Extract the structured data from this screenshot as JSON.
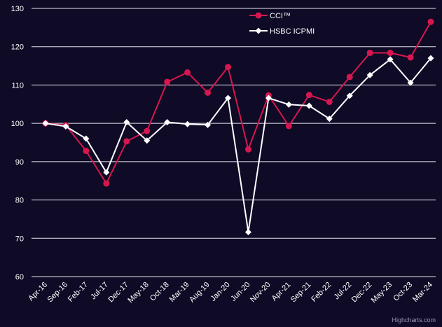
{
  "colors": {
    "background": "#0f0a26",
    "grid": "#e6e4ef",
    "text": "#ffffff",
    "cci": "#d6174f",
    "hsbc": "#ffffff"
  },
  "credit": "Highcharts.com",
  "chart_data": {
    "type": "line",
    "categories": [
      "Apr-16",
      "Sep-16",
      "Feb-17",
      "Jul-17",
      "Dec-17",
      "May-18",
      "Oct-18",
      "Mar-19",
      "Aug-19",
      "Jan-20",
      "Jun-20",
      "Nov-20",
      "Apr-21",
      "Sep-21",
      "Feb-22",
      "Jul-22",
      "Dec-22",
      "May-23",
      "Oct-23",
      "Mar-24"
    ],
    "ylim": [
      60,
      130
    ],
    "yticks": [
      60,
      70,
      80,
      90,
      100,
      110,
      120,
      130
    ],
    "grid": true,
    "legend_position": "top-right",
    "series": [
      {
        "name": "CCI™",
        "color": "#d6174f",
        "marker": "circle",
        "values": [
          100.0,
          99.5,
          92.8,
          84.3,
          95.3,
          98.0,
          110.8,
          113.3,
          108.0,
          114.7,
          93.2,
          107.3,
          99.3,
          107.4,
          105.6,
          112.1,
          118.4,
          118.4,
          117.2,
          126.5
        ]
      },
      {
        "name": "HSBC ICPMI",
        "color": "#ffffff",
        "marker": "diamond",
        "values": [
          100.0,
          99.2,
          96.0,
          87.2,
          100.3,
          95.5,
          100.3,
          99.8,
          99.6,
          106.6,
          71.6,
          106.6,
          104.9,
          104.6,
          101.2,
          107.2,
          112.6,
          116.7,
          110.6,
          117.0
        ]
      }
    ]
  }
}
